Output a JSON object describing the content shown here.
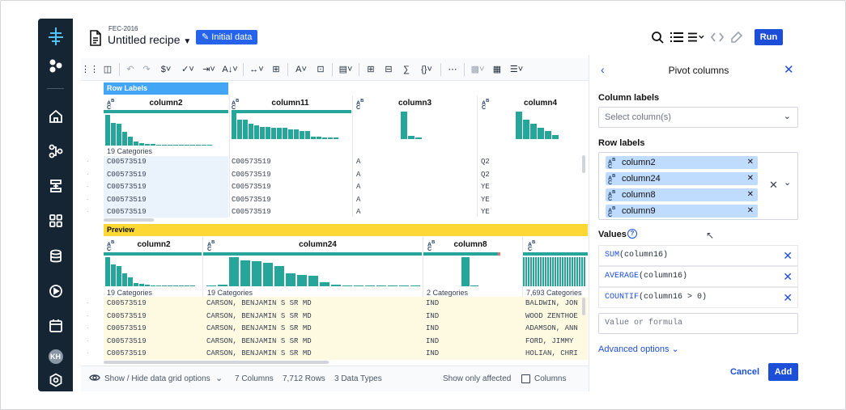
{
  "header": {
    "project": "FEC-2016",
    "recipe_name": "Untitled recipe",
    "initial_badge": "Initial data",
    "run_label": "Run"
  },
  "user": {
    "initials": "KH"
  },
  "grid": {
    "row_labels_title": "Row Labels",
    "preview_title": "Preview",
    "top_columns": [
      {
        "name": "column2",
        "categories": "19 Categories",
        "cells": [
          "C00573519",
          "C00573519",
          "C00573519",
          "C00573519",
          "C00573519"
        ]
      },
      {
        "name": "column11",
        "categories": "",
        "cells": [
          "C00573519",
          "C00573519",
          "C00573519",
          "C00573519",
          "C00573519"
        ]
      },
      {
        "name": "column3",
        "categories": "",
        "cells": [
          "A",
          "A",
          "A",
          "A",
          "A"
        ]
      },
      {
        "name": "column4",
        "categories": "",
        "cells": [
          "Q2",
          "Q2",
          "YE",
          "YE",
          "YE"
        ]
      }
    ],
    "preview_columns": [
      {
        "name": "column2",
        "categories": "19 Categories",
        "cells": [
          "C00573519",
          "C00573519",
          "C00573519",
          "C00573519",
          "C00573519"
        ]
      },
      {
        "name": "column24",
        "categories": "19 Categories",
        "cells": [
          "CARSON, BENJAMIN S SR MD",
          "CARSON, BENJAMIN S SR MD",
          "CARSON, BENJAMIN S SR MD",
          "CARSON, BENJAMIN S SR MD",
          "CARSON, BENJAMIN S SR MD"
        ]
      },
      {
        "name": "column8",
        "categories": "2 Categories",
        "cells": [
          "IND",
          "IND",
          "IND",
          "IND",
          "IND"
        ]
      },
      {
        "name": "column9",
        "categories": "7,693 Categories",
        "cells": [
          "BALDWIN, JON",
          "WOOD ZENTHOE",
          "ADAMSON, ANN",
          "FORD, JIMMY",
          "HOLIAN, CHRI"
        ]
      }
    ]
  },
  "footer": {
    "toggle_label": "Show / Hide data grid options",
    "columns": "7 Columns",
    "rows": "7,712 Rows",
    "types": "3 Data Types",
    "affected": "Show only affected",
    "columns_checkbox": "Columns"
  },
  "panel": {
    "title": "Pivot columns",
    "column_labels_title": "Column labels",
    "column_labels_placeholder": "Select column(s)",
    "row_labels_title": "Row labels",
    "row_label_chips": [
      "column2",
      "column24",
      "column8",
      "column9"
    ],
    "values_title": "Values",
    "values": [
      {
        "fn": "SUM",
        "arg": "(column16)"
      },
      {
        "fn": "AVERAGE",
        "arg": "(column16)"
      },
      {
        "fn": "COUNTIF",
        "arg": "(column16 > 0)"
      }
    ],
    "value_placeholder": "Value or formula",
    "advanced": "Advanced options",
    "cancel": "Cancel",
    "add": "Add"
  },
  "colors": {
    "nav": "#152533",
    "accent": "#1d4ed8",
    "histogram": "#26a69a",
    "row_labels_bar": "#42a5f5",
    "preview_bar": "#fdd835"
  }
}
